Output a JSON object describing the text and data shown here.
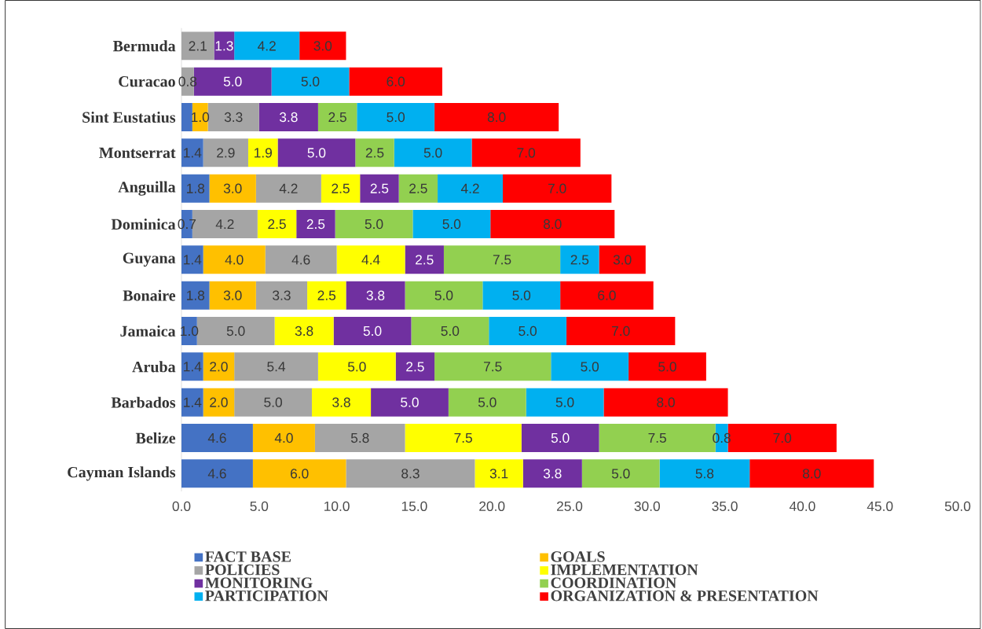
{
  "chart_data": {
    "type": "bar",
    "orientation": "horizontal",
    "stacked": true,
    "legend": "bottom",
    "grid": false,
    "categories": [
      "Bermuda",
      "Curacao",
      "Sint Eustatius",
      "Montserrat",
      "Anguilla",
      "Dominica",
      "Guyana",
      "Bonaire",
      "Jamaica",
      "Aruba",
      "Barbados",
      "Belize",
      "Cayman Islands"
    ],
    "xlim": [
      0,
      50
    ],
    "xticks": [
      {
        "value": 0,
        "label": "0.0"
      },
      {
        "value": 5,
        "label": "5.0"
      },
      {
        "value": 10,
        "label": "10.0"
      },
      {
        "value": 15,
        "label": "15.0"
      },
      {
        "value": 20,
        "label": "20.0"
      },
      {
        "value": 25,
        "label": "25.0"
      },
      {
        "value": 30,
        "label": "30.0"
      },
      {
        "value": 35,
        "label": "35.0"
      },
      {
        "value": 40,
        "label": "40.0"
      },
      {
        "value": 45,
        "label": "45.0"
      },
      {
        "value": 50,
        "label": "50.0"
      }
    ],
    "series": [
      {
        "name": "FACT BASE",
        "color": "#4472c4",
        "values": [
          0.0,
          0.0,
          0.7,
          1.4,
          1.8,
          0.7,
          1.4,
          1.8,
          1.0,
          1.4,
          1.4,
          4.6,
          4.6
        ],
        "value_labels": [
          null,
          null,
          null,
          "1.4",
          "1.8",
          "0.7",
          "1.4",
          "1.8",
          "1.0",
          "1.4",
          "1.4",
          "4.6",
          "4.6"
        ]
      },
      {
        "name": "GOALS",
        "color": "#ffc000",
        "values": [
          0.0,
          0.0,
          1.0,
          0.0,
          3.0,
          0.0,
          4.0,
          3.0,
          0.0,
          2.0,
          2.0,
          4.0,
          6.0
        ],
        "value_labels": [
          null,
          null,
          "1.0",
          null,
          "3.0",
          null,
          "4.0",
          "3.0",
          null,
          "2.0",
          "2.0",
          "4.0",
          "6.0"
        ]
      },
      {
        "name": "POLICIES",
        "color": "#a5a5a5",
        "values": [
          2.1,
          0.8,
          3.3,
          2.9,
          4.2,
          4.2,
          4.6,
          3.3,
          5.0,
          5.4,
          5.0,
          5.8,
          8.3
        ],
        "value_labels": [
          "2.1",
          "0.8",
          "3.3",
          "2.9",
          "4.2",
          "4.2",
          "4.6",
          "3.3",
          "5.0",
          "5.4",
          "5.0",
          "5.8",
          "8.3"
        ]
      },
      {
        "name": "IMPLEMENTATION",
        "color": "#ffff00",
        "values": [
          0.0,
          0.0,
          0.0,
          1.9,
          2.5,
          2.5,
          4.4,
          2.5,
          3.8,
          5.0,
          3.8,
          7.5,
          3.1
        ],
        "value_labels": [
          null,
          null,
          null,
          "1.9",
          "2.5",
          "2.5",
          "4.4",
          "2.5",
          "3.8",
          "5.0",
          "3.8",
          "7.5",
          "3.1"
        ]
      },
      {
        "name": "MONITORING",
        "color": "#7030a0",
        "values": [
          1.3,
          5.0,
          3.8,
          5.0,
          2.5,
          2.5,
          2.5,
          3.8,
          5.0,
          2.5,
          5.0,
          5.0,
          3.8
        ],
        "value_labels": [
          "1.3",
          "5.0",
          "3.8",
          "5.0",
          "2.5",
          "2.5",
          "2.5",
          "3.8",
          "5.0",
          "2.5",
          "5.0",
          "5.0",
          "3.8"
        ]
      },
      {
        "name": "COORDINATION",
        "color": "#92d050",
        "values": [
          0.0,
          0.0,
          2.5,
          2.5,
          2.5,
          5.0,
          7.5,
          5.0,
          5.0,
          7.5,
          5.0,
          7.5,
          5.0
        ],
        "value_labels": [
          null,
          null,
          "2.5",
          "2.5",
          "2.5",
          "5.0",
          "7.5",
          "5.0",
          "5.0",
          "7.5",
          "5.0",
          "7.5",
          "5.0"
        ]
      },
      {
        "name": "PARTICIPATION",
        "color": "#00b0f0",
        "values": [
          4.2,
          5.0,
          5.0,
          5.0,
          4.2,
          5.0,
          2.5,
          5.0,
          5.0,
          5.0,
          5.0,
          0.8,
          5.8
        ],
        "value_labels": [
          "4.2",
          "5.0",
          "5.0",
          "5.0",
          "4.2",
          "5.0",
          "2.5",
          "5.0",
          "5.0",
          "5.0",
          "5.0",
          "0.8",
          "5.8"
        ]
      },
      {
        "name": "ORGANIZATION & PRESENTATION",
        "color": "#ff0000",
        "values": [
          3.0,
          6.0,
          8.0,
          7.0,
          7.0,
          8.0,
          3.0,
          6.0,
          7.0,
          5.0,
          8.0,
          7.0,
          8.0
        ],
        "value_labels": [
          "3.0",
          "6.0",
          "8.0",
          "7.0",
          "7.0",
          "8.0",
          "3.0",
          "6.0",
          "7.0",
          "5.0",
          "8.0",
          "7.0",
          "8.0"
        ]
      }
    ]
  }
}
